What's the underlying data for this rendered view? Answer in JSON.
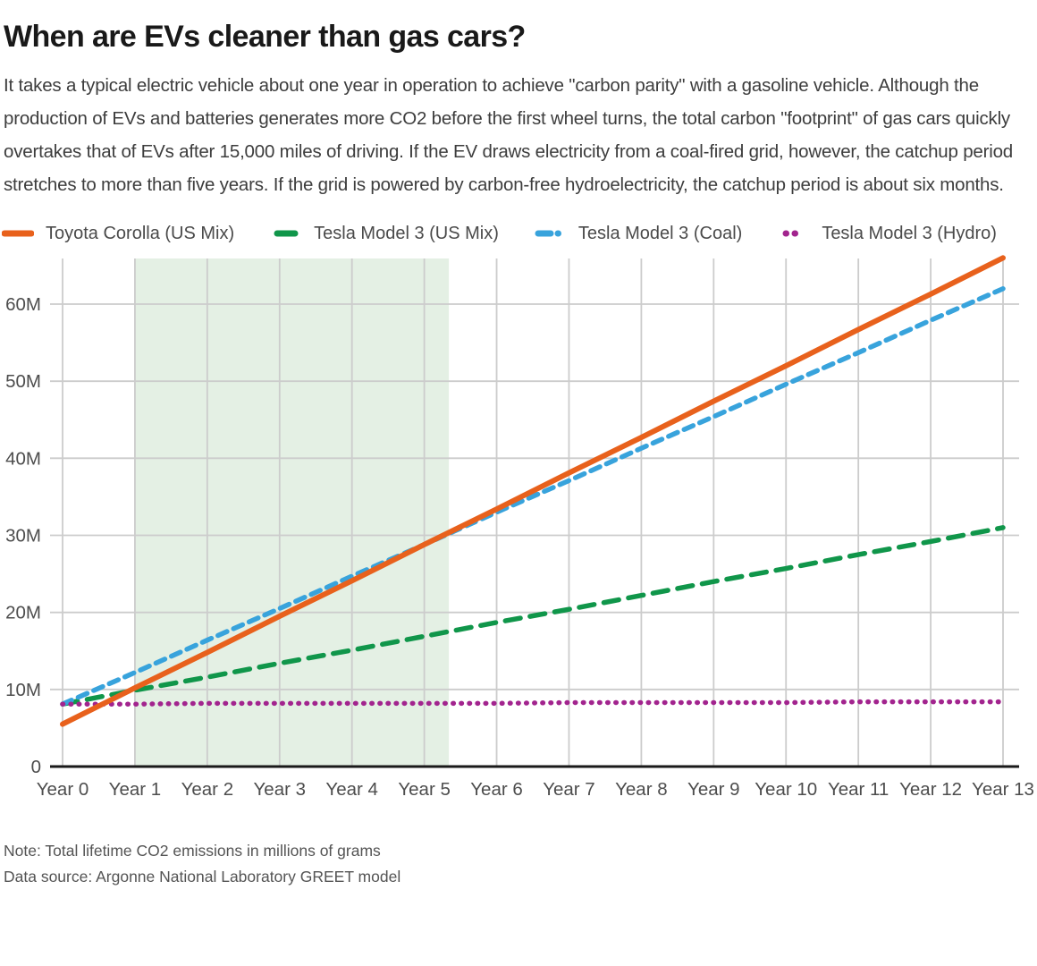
{
  "header": {
    "title": "When are EVs cleaner than gas cars?",
    "description": "It takes a typical electric vehicle about one year in operation to achieve \"carbon parity\" with a gasoline vehicle. Although the production of EVs and batteries generates more CO2 before the first wheel turns, the total carbon \"footprint\" of gas cars quickly overtakes that of EVs after 15,000 miles of driving. If the EV draws electricity from a coal-fired grid, however, the catchup period stretches to more than five years. If the grid is powered by carbon-free hydroelectricity, the catchup period is about six months."
  },
  "chart_data": {
    "type": "line",
    "title": "When are EVs cleaner than gas cars?",
    "xlabel": "",
    "ylabel": "Total lifetime CO2 emissions in millions of grams",
    "x": [
      0,
      1,
      2,
      3,
      4,
      5,
      6,
      7,
      8,
      9,
      10,
      11,
      12,
      13
    ],
    "x_tick_labels": [
      "Year 0",
      "Year 1",
      "Year 2",
      "Year 3",
      "Year 4",
      "Year 5",
      "Year 6",
      "Year 7",
      "Year 8",
      "Year 9",
      "Year 10",
      "Year 11",
      "Year 12",
      "Year 13"
    ],
    "y_ticks": [
      0,
      10,
      20,
      30,
      40,
      50,
      60
    ],
    "y_tick_labels": [
      "0",
      "10M",
      "20M",
      "30M",
      "40M",
      "50M",
      "60M"
    ],
    "ylim": [
      0,
      66
    ],
    "grid": true,
    "legend_position": "top",
    "series": [
      {
        "name": "Toyota Corolla (US Mix)",
        "color": "#e8611c",
        "style": "solid",
        "values": [
          5.5,
          10.2,
          14.8,
          19.5,
          24.1,
          28.8,
          33.4,
          38.1,
          42.7,
          47.4,
          52.0,
          56.7,
          61.3,
          66.0
        ]
      },
      {
        "name": "Tesla Model 3 (US Mix)",
        "color": "#10964a",
        "style": "dashed-long",
        "values": [
          8.1,
          9.9,
          11.6,
          13.4,
          15.1,
          16.9,
          18.7,
          20.4,
          22.2,
          24.0,
          25.7,
          27.5,
          29.2,
          31.0
        ]
      },
      {
        "name": "Tesla Model 3 (Coal)",
        "color": "#38a3dc",
        "style": "dashed",
        "values": [
          8.1,
          12.2,
          16.4,
          20.5,
          24.7,
          28.8,
          33.0,
          37.1,
          41.3,
          45.4,
          49.6,
          53.7,
          57.9,
          62.0
        ]
      },
      {
        "name": "Tesla Model 3 (Hydro)",
        "color": "#a2248e",
        "style": "dotted",
        "values": [
          8.1,
          8.1,
          8.2,
          8.2,
          8.2,
          8.2,
          8.2,
          8.3,
          8.3,
          8.3,
          8.3,
          8.4,
          8.4,
          8.4
        ]
      }
    ],
    "shaded_region": {
      "x_start": 1,
      "x_end": 5.34,
      "color": "#e4f0e4"
    },
    "colors": {
      "grid": "#cccccc",
      "axis": "#1a1a1a",
      "tick_label": "#4d4d4d"
    }
  },
  "footer": {
    "note": "Note: Total lifetime CO2 emissions in millions of grams",
    "source": "Data source: Argonne National Laboratory GREET model"
  }
}
